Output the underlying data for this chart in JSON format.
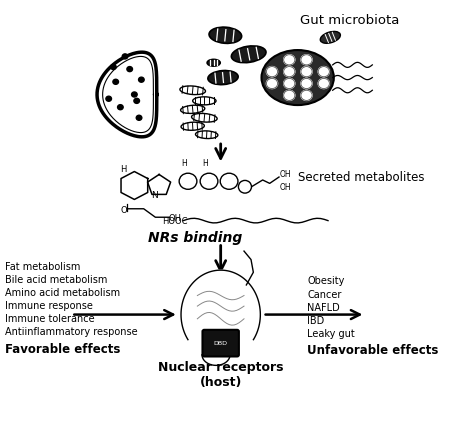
{
  "bg_color": "#ffffff",
  "title": "Gut microbiota",
  "label_metabolites": "Secreted metabolites",
  "label_nrs": "NRs binding",
  "label_nuclear": "Nuclear receptors\n(host)",
  "label_favorable": "Favorable effects",
  "label_unfavorable": "Unfavorable effects",
  "favorable_items": [
    "Fat metabolism",
    "Bile acid metabolism",
    "Amino acid metabolism",
    "Immune response",
    "Immune tolerance",
    "Antiinflammatory response"
  ],
  "unfavorable_items": [
    "Obesity",
    "Cancer",
    "NAFLD",
    "IBD",
    "Leaky gut"
  ],
  "arrow_color": "#000000",
  "text_color": "#000000",
  "fig_width": 4.74,
  "fig_height": 4.26,
  "dpi": 100
}
